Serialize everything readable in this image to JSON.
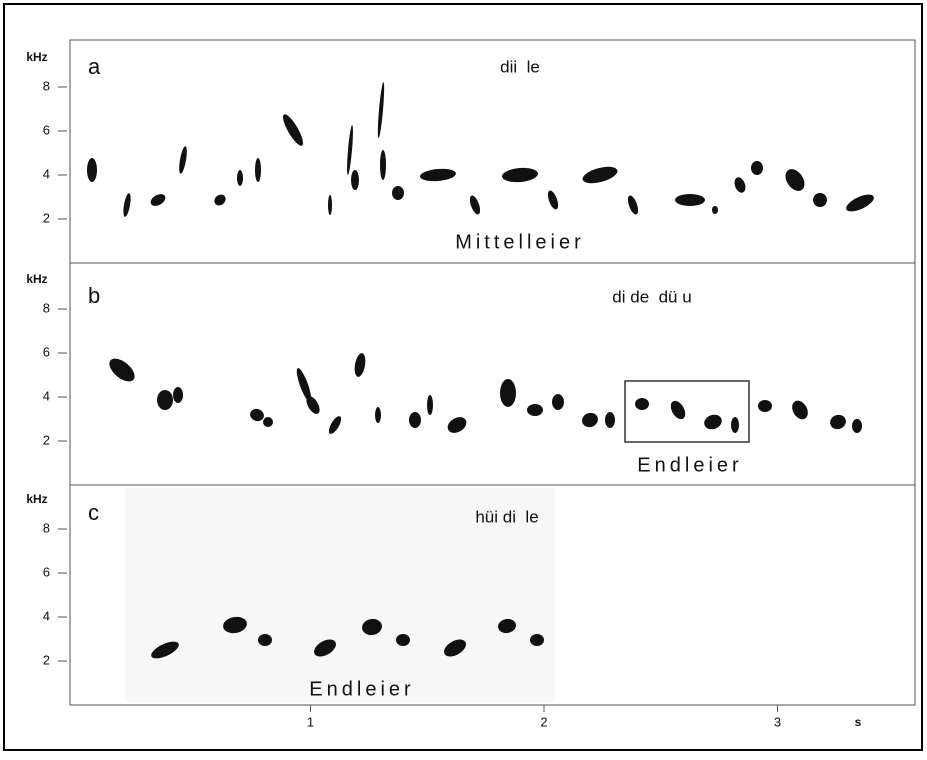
{
  "panels": [
    {
      "letter": "a",
      "y_unit": "kHz",
      "yticks": [
        2,
        4,
        6,
        8
      ],
      "syllables": "dii  le",
      "annotation": "Mittelleier"
    },
    {
      "letter": "b",
      "y_unit": "kHz",
      "yticks": [
        2,
        4,
        6,
        8
      ],
      "syllables": "di de  dü u",
      "annotation": "Endleier"
    },
    {
      "letter": "c",
      "y_unit": "kHz",
      "yticks": [
        2,
        4,
        6,
        8
      ],
      "syllables": "hüi di  le",
      "annotation": "Endleier"
    }
  ],
  "x_axis": {
    "unit": "s",
    "ticks": [
      1,
      2,
      3
    ]
  }
}
